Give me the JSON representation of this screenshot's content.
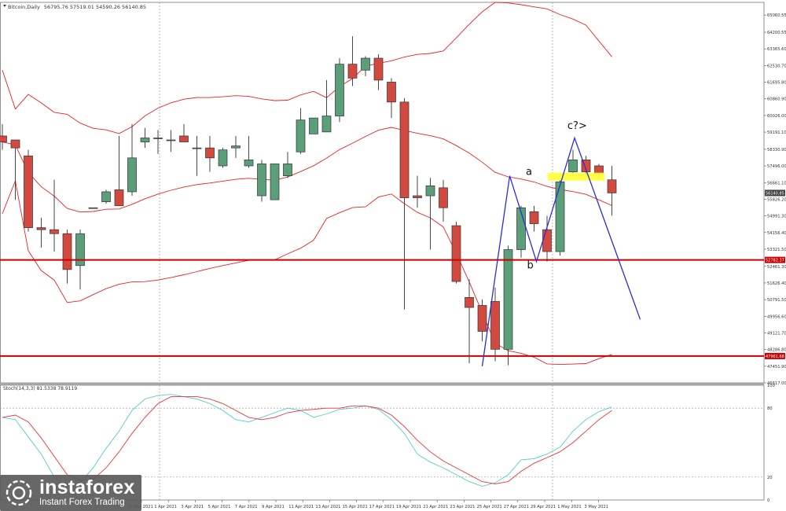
{
  "header": {
    "symbol": "Bitcoin,Daily",
    "ohlc": "56795.76 57519.01 54590.26 56140.85",
    "stoch_label": "Stoch(14,3,3) 81.5338 78.9119"
  },
  "chart_data": [
    {
      "type": "candlestick",
      "title": "Bitcoin,Daily",
      "x_labels": [
        "30 Mar 2021",
        "1 Apr 2021",
        "3 Apr 2021",
        "5 Apr 2021",
        "7 Apr 2021",
        "9 Apr 2021",
        "11 Apr 2021",
        "13 Apr 2021",
        "15 Apr 2021",
        "17 Apr 2021",
        "19 Apr 2021",
        "21 Apr 2021",
        "23 Apr 2021",
        "25 Apr 2021",
        "27 Apr 2021",
        "29 Apr 2021",
        "1 May 2021",
        "3 May 2021"
      ],
      "y_ticks": [
        "65060.55",
        "64200.55",
        "63365.60",
        "62530.70",
        "61695.80",
        "60860.90",
        "60026.00",
        "59191.10",
        "58330.90",
        "57496.00",
        "56661.10",
        "55826.20",
        "54991.30",
        "54156.40",
        "53321.50",
        "52461.30",
        "51626.40",
        "50791.50",
        "49956.60",
        "49121.70",
        "48286.80",
        "47451.90",
        "46617.00"
      ],
      "ylim": [
        46617.0,
        65700.0
      ],
      "candles": [
        {
          "o": 59000,
          "h": 59600,
          "l": 58300,
          "c": 58700
        },
        {
          "o": 58800,
          "h": 58800,
          "l": 55800,
          "c": 58400
        },
        {
          "o": 58000,
          "h": 58300,
          "l": 54200,
          "c": 54400
        },
        {
          "o": 54400,
          "h": 54900,
          "l": 53400,
          "c": 54300
        },
        {
          "o": 54300,
          "h": 56800,
          "l": 53200,
          "c": 54100
        },
        {
          "o": 54100,
          "h": 54300,
          "l": 51600,
          "c": 52300
        },
        {
          "o": 52500,
          "h": 54300,
          "l": 51300,
          "c": 54100
        },
        {
          "o": 55400,
          "h": 55400,
          "l": 55400,
          "c": 55400
        },
        {
          "o": 55700,
          "h": 56300,
          "l": 55600,
          "c": 56200
        },
        {
          "o": 56300,
          "h": 59000,
          "l": 55500,
          "c": 55500
        },
        {
          "o": 56200,
          "h": 59600,
          "l": 56000,
          "c": 57900
        },
        {
          "o": 58700,
          "h": 59400,
          "l": 58400,
          "c": 58900
        },
        {
          "o": 58900,
          "h": 59300,
          "l": 58100,
          "c": 58900
        },
        {
          "o": 58800,
          "h": 59300,
          "l": 58200,
          "c": 58800
        },
        {
          "o": 59000,
          "h": 59600,
          "l": 58700,
          "c": 58700
        },
        {
          "o": 58400,
          "h": 59000,
          "l": 57000,
          "c": 58400
        },
        {
          "o": 58400,
          "h": 59000,
          "l": 57200,
          "c": 57900
        },
        {
          "o": 57500,
          "h": 58400,
          "l": 57400,
          "c": 58300
        },
        {
          "o": 58400,
          "h": 59000,
          "l": 57900,
          "c": 58500
        },
        {
          "o": 57500,
          "h": 59000,
          "l": 57400,
          "c": 57800
        },
        {
          "o": 56000,
          "h": 57800,
          "l": 55700,
          "c": 57600
        },
        {
          "o": 55800,
          "h": 57600,
          "l": 55800,
          "c": 57600
        },
        {
          "o": 57000,
          "h": 58200,
          "l": 56900,
          "c": 57600
        },
        {
          "o": 58200,
          "h": 60400,
          "l": 58100,
          "c": 59800
        },
        {
          "o": 59100,
          "h": 59900,
          "l": 59100,
          "c": 59900
        },
        {
          "o": 59200,
          "h": 61800,
          "l": 59200,
          "c": 60000
        },
        {
          "o": 60000,
          "h": 62900,
          "l": 59700,
          "c": 62600
        },
        {
          "o": 62600,
          "h": 64000,
          "l": 61500,
          "c": 61900
        },
        {
          "o": 62300,
          "h": 63000,
          "l": 62000,
          "c": 62900
        },
        {
          "o": 62900,
          "h": 63100,
          "l": 61300,
          "c": 61800
        },
        {
          "o": 61700,
          "h": 61900,
          "l": 59900,
          "c": 60700
        },
        {
          "o": 60700,
          "h": 60900,
          "l": 50300,
          "c": 55900
        },
        {
          "o": 56000,
          "h": 57000,
          "l": 55400,
          "c": 55900
        },
        {
          "o": 56000,
          "h": 56900,
          "l": 53300,
          "c": 56500
        },
        {
          "o": 56400,
          "h": 56800,
          "l": 54700,
          "c": 55400
        },
        {
          "o": 54500,
          "h": 54700,
          "l": 51600,
          "c": 51700
        },
        {
          "o": 50900,
          "h": 51800,
          "l": 47600,
          "c": 50400
        },
        {
          "o": 50500,
          "h": 50800,
          "l": 48700,
          "c": 49200
        },
        {
          "o": 50700,
          "h": 51400,
          "l": 47700,
          "c": 48300
        },
        {
          "o": 48300,
          "h": 53500,
          "l": 47500,
          "c": 53300
        },
        {
          "o": 53300,
          "h": 55500,
          "l": 52900,
          "c": 55400
        },
        {
          "o": 55200,
          "h": 55500,
          "l": 54200,
          "c": 54600
        },
        {
          "o": 54300,
          "h": 55000,
          "l": 52700,
          "c": 53200
        },
        {
          "o": 53200,
          "h": 56800,
          "l": 53000,
          "c": 56700
        },
        {
          "o": 57200,
          "h": 58300,
          "l": 57000,
          "c": 57800
        },
        {
          "o": 57800,
          "h": 58000,
          "l": 57000,
          "c": 57200
        },
        {
          "o": 57500,
          "h": 57600,
          "l": 56900,
          "c": 57100
        },
        {
          "o": 56800,
          "h": 57500,
          "l": 55000,
          "c": 56141
        }
      ],
      "levels": [
        {
          "value": 52782.37,
          "label": "52782.37",
          "color": "#cc0000"
        },
        {
          "value": 47961.68,
          "label": "47961.68",
          "color": "#cc0000"
        },
        {
          "value": 56140.85,
          "label": "56140.85",
          "color": "#404040"
        }
      ],
      "annotations": [
        {
          "text": "a",
          "x": 43.0,
          "y": 57050
        },
        {
          "text": "b",
          "x": 43.1,
          "y": 52350
        },
        {
          "text": "c?>",
          "x": 46.4,
          "y": 59350
        }
      ],
      "colors": {
        "bull": "#5b9f7a",
        "bear": "#d24a3f",
        "band": "#ee2222",
        "wave": "#2b2bdd",
        "highlight": "#ffff33"
      }
    },
    {
      "type": "line",
      "title": "Stoch(14,3,3) 81.5338 78.9119",
      "ylim": [
        0,
        100
      ],
      "y_ticks": [
        "100",
        "80",
        "20",
        "0"
      ],
      "series": [
        {
          "name": "",
          "color": "#55cccc",
          "values": [
            72,
            70,
            55,
            40,
            20,
            12,
            15,
            28,
            45,
            60,
            78,
            88,
            91,
            92,
            90,
            88,
            84,
            78,
            70,
            68,
            72,
            76,
            80,
            78,
            72,
            75,
            79,
            80,
            82,
            79,
            70,
            58,
            40,
            33,
            28,
            22,
            16,
            12,
            15,
            22,
            35,
            36,
            40,
            46,
            60,
            70,
            77,
            81
          ]
        },
        {
          "name": "",
          "color": "#ee3333",
          "values": [
            72,
            74,
            68,
            54,
            38,
            22,
            17,
            18,
            28,
            42,
            58,
            72,
            84,
            90,
            90,
            90,
            88,
            84,
            78,
            72,
            70,
            72,
            76,
            78,
            79,
            80,
            80,
            82,
            82,
            80,
            74,
            64,
            52,
            42,
            34,
            28,
            22,
            16,
            14,
            16,
            25,
            32,
            37,
            42,
            50,
            60,
            70,
            78
          ]
        }
      ]
    }
  ],
  "watermark": {
    "brand": "instaforex",
    "tagline": "Instant Forex Trading"
  }
}
